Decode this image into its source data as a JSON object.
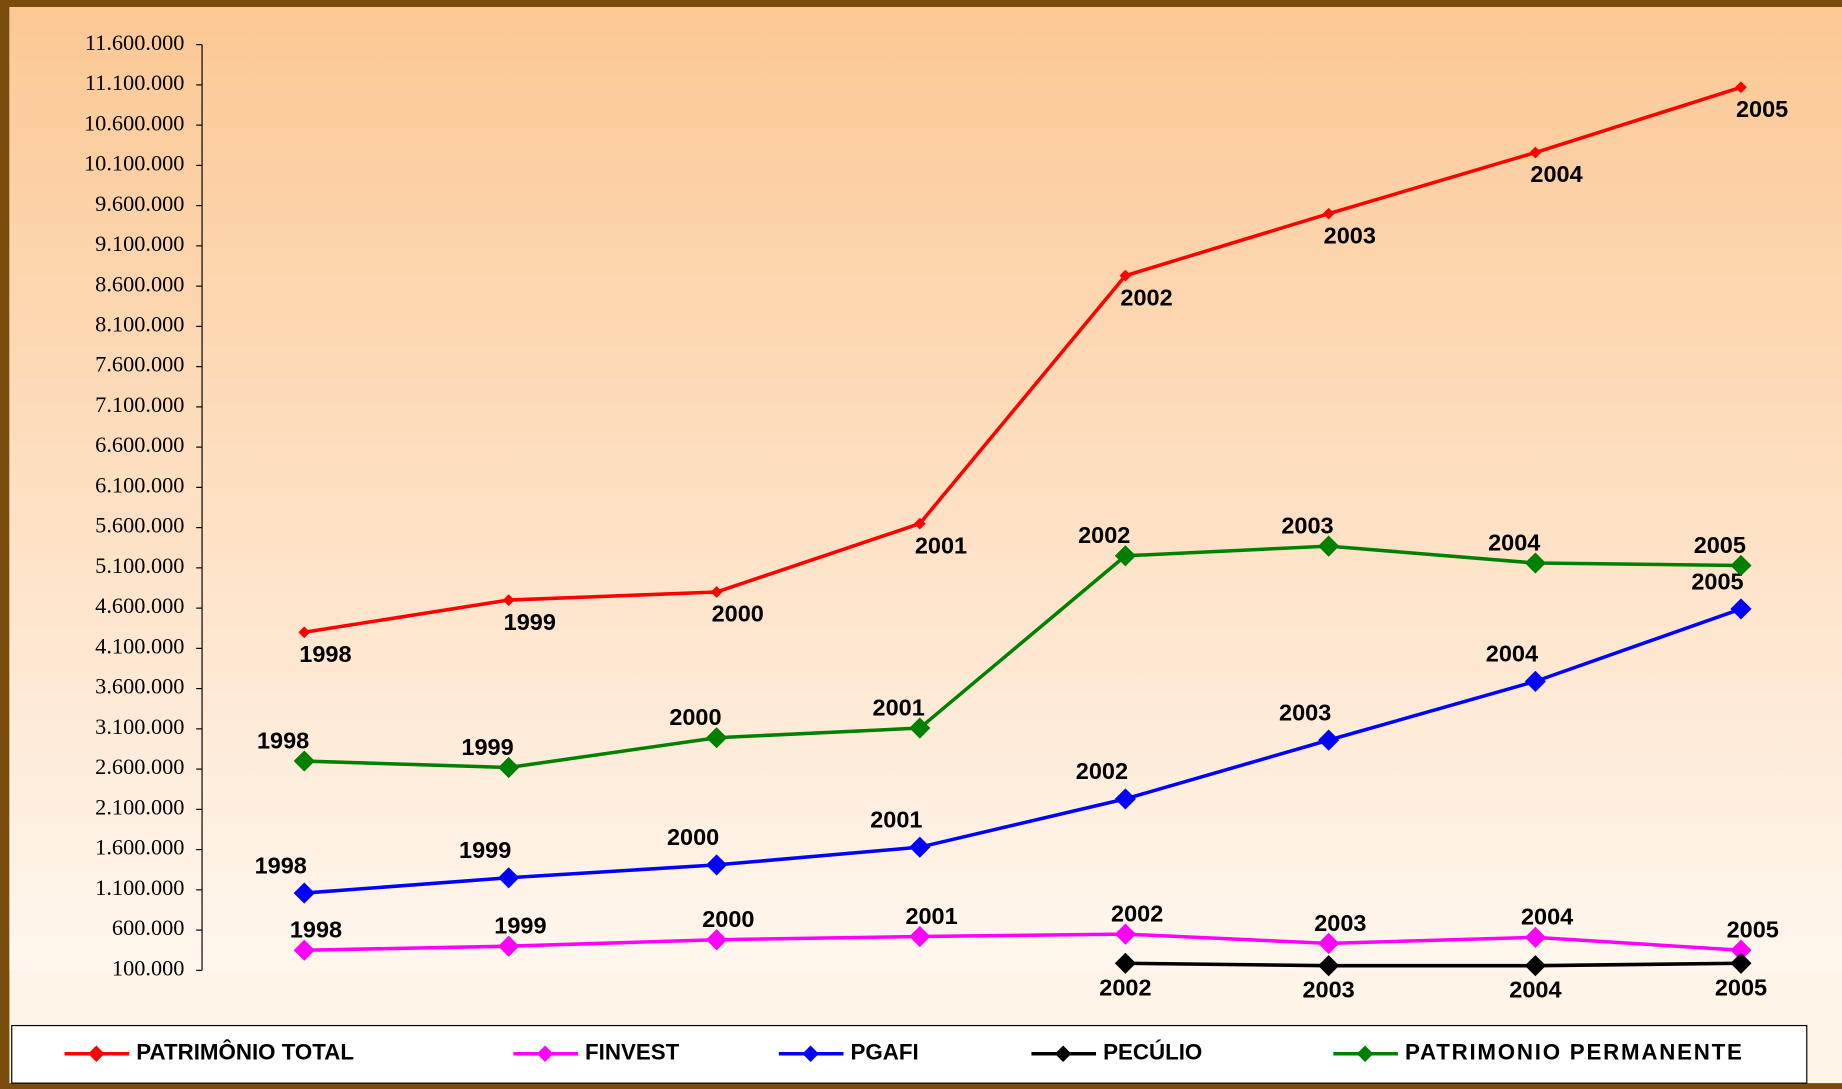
{
  "chart_data": {
    "type": "line",
    "categories": [
      "1998",
      "1999",
      "2000",
      "2001",
      "2002",
      "2003",
      "2004",
      "2005"
    ],
    "series": [
      {
        "name": "PATRIMÔNIO TOTAL",
        "color": "#ff0000",
        "values": [
          4300000,
          4700000,
          4800000,
          5650000,
          8730000,
          9500000,
          10260000,
          11070000
        ]
      },
      {
        "name": "FINVEST",
        "color": "#ff00ff",
        "values": [
          350000,
          400000,
          480000,
          520000,
          550000,
          435000,
          510000,
          350000
        ]
      },
      {
        "name": "PGAFI",
        "color": "#0000ff",
        "values": [
          1060000,
          1250000,
          1410000,
          1630000,
          2230000,
          2960000,
          3690000,
          4590000
        ]
      },
      {
        "name": "PECÚLIO",
        "color": "#000000",
        "values": [
          null,
          null,
          null,
          null,
          188000,
          158000,
          158000,
          188000
        ]
      },
      {
        "name": "PATRIMONIO PERMANENTE",
        "color": "#008000",
        "values": [
          2700000,
          2620000,
          2990000,
          3110000,
          5250000,
          5370000,
          5160000,
          5130000
        ]
      }
    ],
    "ylim": [
      100000,
      11600000
    ],
    "yticks": [
      {
        "value": 100000,
        "label": "100.000"
      },
      {
        "value": 600000,
        "label": "600.000"
      },
      {
        "value": 1100000,
        "label": "1.100.000"
      },
      {
        "value": 1600000,
        "label": "1.600.000"
      },
      {
        "value": 2100000,
        "label": "2.100.000"
      },
      {
        "value": 2600000,
        "label": "2.600.000"
      },
      {
        "value": 3100000,
        "label": "3.100.000"
      },
      {
        "value": 3600000,
        "label": "3.600.000"
      },
      {
        "value": 4100000,
        "label": "4.100.000"
      },
      {
        "value": 4600000,
        "label": "4.600.000"
      },
      {
        "value": 5100000,
        "label": "5.100.000"
      },
      {
        "value": 5600000,
        "label": "5.600.000"
      },
      {
        "value": 6100000,
        "label": "6.100.000"
      },
      {
        "value": 6600000,
        "label": "6.600.000"
      },
      {
        "value": 7100000,
        "label": "7.100.000"
      },
      {
        "value": 7600000,
        "label": "7.600.000"
      },
      {
        "value": 8100000,
        "label": "8.100.000"
      },
      {
        "value": 8600000,
        "label": "8.600.000"
      },
      {
        "value": 9100000,
        "label": "9.100.000"
      },
      {
        "value": 9600000,
        "label": "9.600.000"
      },
      {
        "value": 10100000,
        "label": "10.100.000"
      },
      {
        "value": 10600000,
        "label": "10.600.000"
      },
      {
        "value": 11100000,
        "label": "11.100.000"
      },
      {
        "value": 11600000,
        "label": "11.600.000"
      }
    ],
    "legend": "bottom"
  }
}
